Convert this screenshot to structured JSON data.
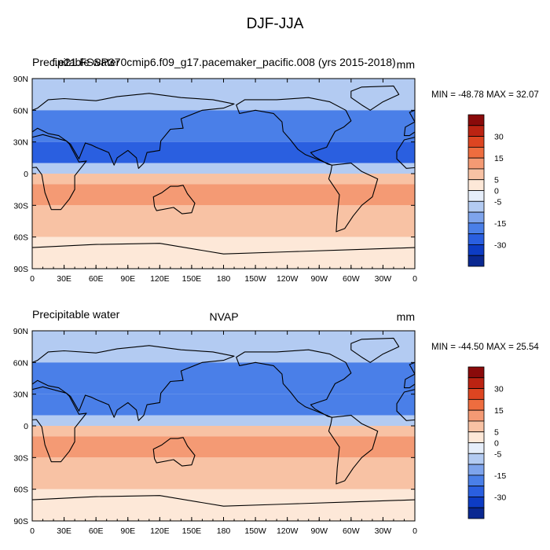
{
  "figure_title": "DJF-JJA",
  "chart_data": [
    {
      "type": "heatmap",
      "panel": "top",
      "left_label": "Precipitable water",
      "center_label": "f.e21.FSSP370cmip6.f09_g17.pacemaker_pacific.008 (yrs 2015-2018)",
      "units": "mm",
      "min_max_text": "MIN = -48.78 MAX =  32.07",
      "min": -48.78,
      "max": 32.07,
      "x_ticks": [
        "0",
        "30E",
        "60E",
        "90E",
        "120E",
        "150E",
        "180",
        "150W",
        "120W",
        "90W",
        "60W",
        "30W",
        "0"
      ],
      "y_ticks": [
        "90N",
        "60N",
        "30N",
        "0",
        "30S",
        "60S",
        "90S"
      ],
      "lat_range": [
        -90,
        90
      ],
      "lon_range": [
        0,
        360
      ],
      "colorbar_levels": [
        -30,
        -25,
        -20,
        -15,
        -10,
        -5,
        0,
        5,
        10,
        15,
        20,
        25,
        30,
        35
      ],
      "colorbar_labels": [
        "30",
        "15",
        "5",
        "0",
        "-5",
        "-15",
        "-30"
      ],
      "zonal_band_values": [
        {
          "lat": [
            60,
            90
          ],
          "value": -10
        },
        {
          "lat": [
            30,
            60
          ],
          "value": -17
        },
        {
          "lat": [
            10,
            30
          ],
          "value": -22
        },
        {
          "lat": [
            0,
            10
          ],
          "value": -8
        },
        {
          "lat": [
            -10,
            0
          ],
          "value": 6
        },
        {
          "lat": [
            -30,
            -10
          ],
          "value": 14
        },
        {
          "lat": [
            -60,
            -30
          ],
          "value": 6
        },
        {
          "lat": [
            -90,
            -60
          ],
          "value": 2
        }
      ]
    },
    {
      "type": "heatmap",
      "panel": "bottom",
      "left_label": "Precipitable water",
      "center_label": "NVAP",
      "units": "mm",
      "min_max_text": "MIN = -44.50 MAX =  25.54",
      "min": -44.5,
      "max": 25.54,
      "x_ticks": [
        "0",
        "30E",
        "60E",
        "90E",
        "120E",
        "150E",
        "180",
        "150W",
        "120W",
        "90W",
        "60W",
        "30W",
        "0"
      ],
      "y_ticks": [
        "90N",
        "60N",
        "30N",
        "0",
        "30S",
        "60S",
        "90S"
      ],
      "lat_range": [
        -90,
        90
      ],
      "lon_range": [
        0,
        360
      ],
      "colorbar_levels": [
        -30,
        -25,
        -20,
        -15,
        -10,
        -5,
        0,
        5,
        10,
        15,
        20,
        25,
        30,
        35
      ],
      "colorbar_labels": [
        "30",
        "15",
        "5",
        "0",
        "-5",
        "-15",
        "-30"
      ],
      "zonal_band_values": [
        {
          "lat": [
            60,
            90
          ],
          "value": -9
        },
        {
          "lat": [
            30,
            60
          ],
          "value": -16
        },
        {
          "lat": [
            10,
            30
          ],
          "value": -20
        },
        {
          "lat": [
            0,
            10
          ],
          "value": -7
        },
        {
          "lat": [
            -10,
            0
          ],
          "value": 5
        },
        {
          "lat": [
            -30,
            -10
          ],
          "value": 12
        },
        {
          "lat": [
            -60,
            -30
          ],
          "value": 5
        },
        {
          "lat": [
            -90,
            -60
          ],
          "value": 2
        }
      ]
    }
  ],
  "colors": {
    "palette": [
      "#0a2891",
      "#0d3cc4",
      "#2a5fe0",
      "#4a7fe8",
      "#7ea4ec",
      "#b3cbf2",
      "#e6eefa",
      "#fde8d8",
      "#f8c2a4",
      "#f49a74",
      "#ee6d3f",
      "#dd4521",
      "#bb2312",
      "#8a0a0a"
    ]
  }
}
